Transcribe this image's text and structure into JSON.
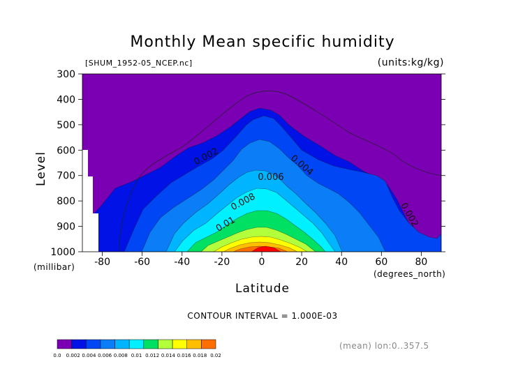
{
  "chart_data": {
    "type": "heatmap",
    "subtype": "filled-contour",
    "title": "Monthly Mean specific humidity",
    "file_label": "[SHUM_1952-05_NCEP.nc]",
    "units_label": "(units:kg/kg)",
    "xlabel": "Latitude",
    "xunits": "(degrees_north)",
    "ylabel": "Level",
    "yunits": "(millibar)",
    "xlim": [
      -90,
      90
    ],
    "ylim": [
      1000,
      300
    ],
    "x_ticks": [
      "-80",
      "-60",
      "-40",
      "-20",
      "0",
      "20",
      "40",
      "60",
      "80"
    ],
    "y_ticks": [
      "300",
      "400",
      "500",
      "600",
      "700",
      "800",
      "900",
      "1000"
    ],
    "contour_interval_text": "CONTOUR INTERVAL = 1.000E-03",
    "footer_text": "(mean) lon:0..357.5",
    "contour_labels": [
      "0.002",
      "0.004",
      "0.006",
      "0.008",
      "0.01",
      "0.002"
    ],
    "colorbar": {
      "labels": [
        "0.0",
        "0.002",
        "0.004",
        "0.006",
        "0.008",
        "0.01",
        "0.012",
        "0.014",
        "0.016",
        "0.018",
        "0.02"
      ],
      "colors": [
        "#7b00b4",
        "#0012e6",
        "#0046f5",
        "#0a7df7",
        "#00b4ff",
        "#00f0ff",
        "#00e164",
        "#b4ff3c",
        "#ffff00",
        "#ffbe00",
        "#ff6e00",
        "#ff0000"
      ]
    }
  }
}
